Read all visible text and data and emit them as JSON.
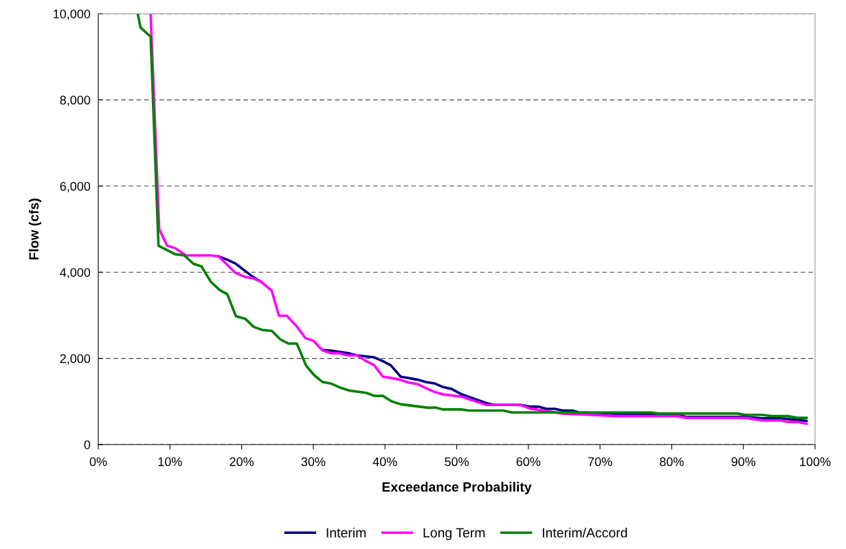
{
  "chart_data": {
    "type": "line",
    "xlabel": "Exceedance Probability",
    "ylabel": "Flow (cfs)",
    "xlim": [
      0,
      100
    ],
    "ylim": [
      0,
      10000
    ],
    "xticks": [
      {
        "value": 0,
        "label": "0%"
      },
      {
        "value": 10,
        "label": "10%"
      },
      {
        "value": 20,
        "label": "20%"
      },
      {
        "value": 30,
        "label": "30%"
      },
      {
        "value": 40,
        "label": "40%"
      },
      {
        "value": 50,
        "label": "50%"
      },
      {
        "value": 60,
        "label": "60%"
      },
      {
        "value": 70,
        "label": "70%"
      },
      {
        "value": 80,
        "label": "80%"
      },
      {
        "value": 90,
        "label": "90%"
      },
      {
        "value": 100,
        "label": "100%"
      }
    ],
    "yticks": [
      {
        "value": 0,
        "label": "0"
      },
      {
        "value": 2000,
        "label": "2,000"
      },
      {
        "value": 4000,
        "label": "4,000"
      },
      {
        "value": 6000,
        "label": "6,000"
      },
      {
        "value": 8000,
        "label": "8,000"
      },
      {
        "value": 10000,
        "label": "10,000"
      }
    ],
    "grid": "y",
    "legend": "bottom",
    "marker": "none",
    "line_style": "solid",
    "series": [
      {
        "name": "Interim",
        "color": "#000080",
        "x": [
          16.8,
          18.1,
          19.2,
          20.8,
          21.6,
          22.7,
          24.2,
          25.2,
          26.3,
          27.7,
          28.9,
          30.0,
          31.3,
          32.5,
          34.9,
          36.1,
          38.5,
          39.7,
          40.8,
          42.2,
          44.6,
          45.7,
          47.0,
          48.1,
          49.3,
          50.6,
          54.1,
          55.2,
          58.9,
          60.2,
          61.4,
          62.5,
          63.7,
          64.8,
          66.1,
          67.1,
          71.4,
          73.1,
          80.8,
          82.0,
          90.3,
          92.6,
          95.2,
          98.8
        ],
        "values": [
          4365,
          4285,
          4195,
          3990,
          3890,
          3780,
          null,
          null,
          null,
          null,
          null,
          null,
          2195,
          2180,
          2120,
          2070,
          2025,
          1935,
          1840,
          1575,
          1505,
          1450,
          1415,
          1335,
          1290,
          1175,
          965,
          920,
          920,
          880,
          880,
          830,
          830,
          790,
          790,
          745,
          725,
          690,
          690,
          640,
          640,
          610,
          610,
          550
        ]
      },
      {
        "name": "Long Term",
        "color": "#ff00ff",
        "x": [
          7.3,
          8.5,
          9.6,
          10.7,
          12.2,
          15.7,
          16.8,
          19.1,
          20.5,
          21.6,
          22.7,
          24.2,
          25.2,
          26.3,
          27.7,
          28.9,
          30.0,
          31.3,
          32.5,
          33.6,
          34.9,
          36.1,
          37.3,
          38.5,
          39.7,
          40.9,
          42.1,
          43.3,
          44.5,
          45.7,
          47.0,
          48.1,
          50.6,
          54.1,
          58.9,
          60.2,
          64.8,
          68.5,
          72.4,
          80.8,
          82.0,
          90.3,
          92.6,
          95.2,
          96.2,
          97.5,
          98.8
        ],
        "values": [
          10000,
          5000,
          4615,
          4560,
          4390,
          4390,
          4365,
          3990,
          3890,
          3860,
          3780,
          3570,
          2990,
          2990,
          2740,
          2470,
          2410,
          2185,
          2120,
          2120,
          2070,
          2070,
          1945,
          1840,
          1575,
          1545,
          1505,
          1440,
          1405,
          1310,
          1215,
          1165,
          1115,
          920,
          920,
          835,
          720,
          690,
          660,
          660,
          620,
          620,
          560,
          560,
          525,
          525,
          485
        ]
      },
      {
        "name": "Interim/Accord",
        "color": "#008000",
        "x": [
          5.5,
          5.9,
          7.3,
          8.4,
          10.7,
          12.0,
          13.3,
          14.4,
          15.7,
          16.9,
          18.0,
          19.2,
          20.5,
          21.7,
          22.9,
          24.2,
          25.4,
          26.5,
          27.7,
          29.0,
          30.1,
          31.3,
          32.5,
          33.7,
          35.0,
          37.4,
          38.5,
          39.7,
          40.9,
          42.2,
          46.0,
          47.0,
          48.1,
          50.6,
          51.7,
          56.5,
          57.7,
          77.0,
          78.2,
          89.1,
          90.3,
          92.6,
          93.9,
          96.2,
          97.5,
          98.8
        ],
        "values": [
          10000,
          9680,
          9470,
          4615,
          4420,
          4390,
          4195,
          4135,
          3780,
          3590,
          3490,
          2980,
          2920,
          2730,
          2660,
          2640,
          2440,
          2345,
          2345,
          1830,
          1615,
          1450,
          1415,
          1325,
          1255,
          1200,
          1130,
          1130,
          1005,
          935,
          855,
          860,
          815,
          815,
          790,
          790,
          745,
          745,
          720,
          720,
          690,
          690,
          660,
          660,
          620,
          620
        ]
      }
    ]
  }
}
